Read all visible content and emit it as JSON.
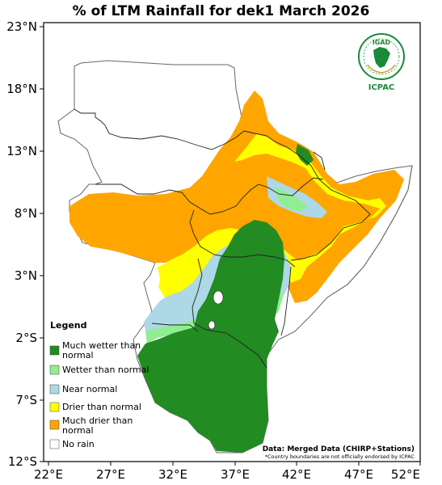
{
  "title": "% of LTM Rainfall for dek1 March 2026",
  "axes": {
    "lat_labels": [
      "23°N",
      "18°N",
      "13°N",
      "8°N",
      "3°N",
      "2°S",
      "7°S",
      "12°S"
    ],
    "lon_labels": [
      "22°E",
      "27°E",
      "32°E",
      "37°E",
      "42°E",
      "47°E",
      "52°E"
    ]
  },
  "legend": {
    "title": "Legend",
    "items": [
      {
        "label_line1": "Much wetter than",
        "label_line2": "normal",
        "color": "#228b22"
      },
      {
        "label_line1": "Wetter than normal",
        "label_line2": "",
        "color": "#90ee90"
      },
      {
        "label_line1": "Near normal",
        "label_line2": "",
        "color": "#add8e6"
      },
      {
        "label_line1": "Drier than normal",
        "label_line2": "",
        "color": "#ffff00"
      },
      {
        "label_line1": "Much drier than",
        "label_line2": "normal",
        "color": "#ffa500"
      },
      {
        "label_line1": "No rain",
        "label_line2": "",
        "color": "#ffffff"
      }
    ]
  },
  "credit": {
    "source": "Data: Merged Data (CHIRP+Stations)",
    "disclaimer": "*Country boundaries are not officially endorsed by ICPAC"
  },
  "logo": {
    "top": "IGAD",
    "bottom": "ICPAC",
    "color": "#1a8a3a"
  }
}
